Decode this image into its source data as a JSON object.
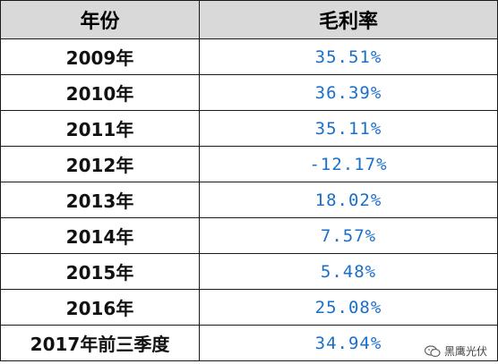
{
  "table": {
    "headers": [
      "年份",
      "毛利率"
    ],
    "rows": [
      {
        "year": "2009年",
        "margin": "35.51%"
      },
      {
        "year": "2010年",
        "margin": "36.39%"
      },
      {
        "year": "2011年",
        "margin": "35.11%"
      },
      {
        "year": "2012年",
        "margin": "-12.17%"
      },
      {
        "year": "2013年",
        "margin": "18.02%"
      },
      {
        "year": "2014年",
        "margin": "7.57%"
      },
      {
        "year": "2015年",
        "margin": "5.48%"
      },
      {
        "year": "2016年",
        "margin": "25.08%"
      },
      {
        "year": "2017年前三季度",
        "margin": "34.94%"
      }
    ]
  },
  "watermark": {
    "text": "黑鹰光伏",
    "icon": "wechat-icon"
  }
}
